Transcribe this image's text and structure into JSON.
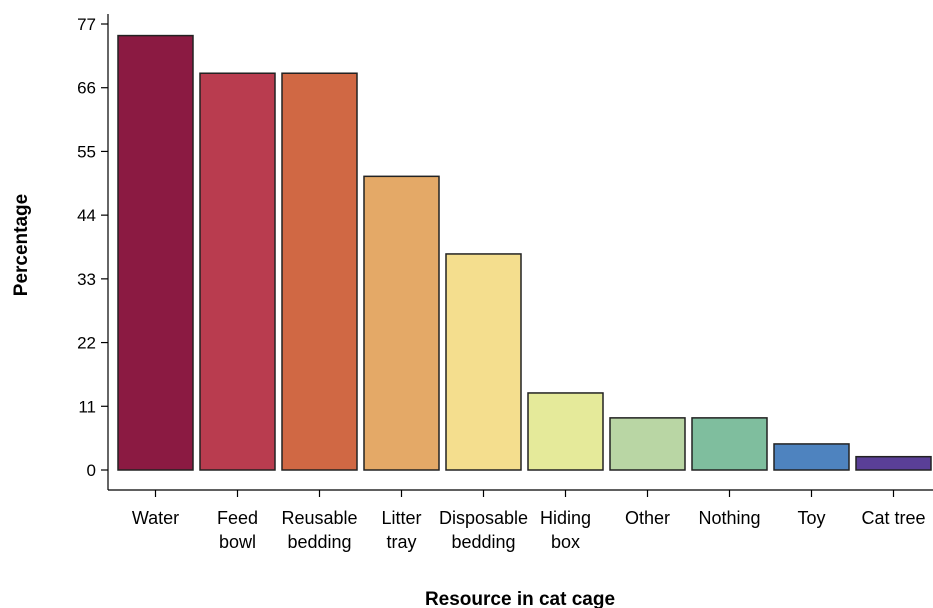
{
  "chart_data": {
    "type": "bar",
    "title": "",
    "xlabel": "Resource in cat cage",
    "ylabel": "Percentage",
    "ylim": [
      0,
      77
    ],
    "yticks": [
      0,
      11,
      22,
      33,
      44,
      55,
      66,
      77
    ],
    "grid": false,
    "legend": "none",
    "categories": [
      [
        "Water"
      ],
      [
        "Feed",
        "bowl"
      ],
      [
        "Reusable",
        "bedding"
      ],
      [
        "Litter",
        "tray"
      ],
      [
        "Disposable",
        "bedding"
      ],
      [
        "Hiding",
        "box"
      ],
      [
        "Other"
      ],
      [
        "Nothing"
      ],
      [
        "Toy"
      ],
      [
        "Cat tree"
      ]
    ],
    "values": [
      75,
      68.5,
      68.5,
      50.7,
      37.3,
      13.3,
      9,
      9,
      4.5,
      2.3
    ],
    "colors": [
      "#8B1A42",
      "#B93C4F",
      "#D06844",
      "#E4A967",
      "#F4DE8E",
      "#E5EA9A",
      "#B9D6A4",
      "#7FBE9E",
      "#4E83BF",
      "#5A3F97"
    ]
  }
}
